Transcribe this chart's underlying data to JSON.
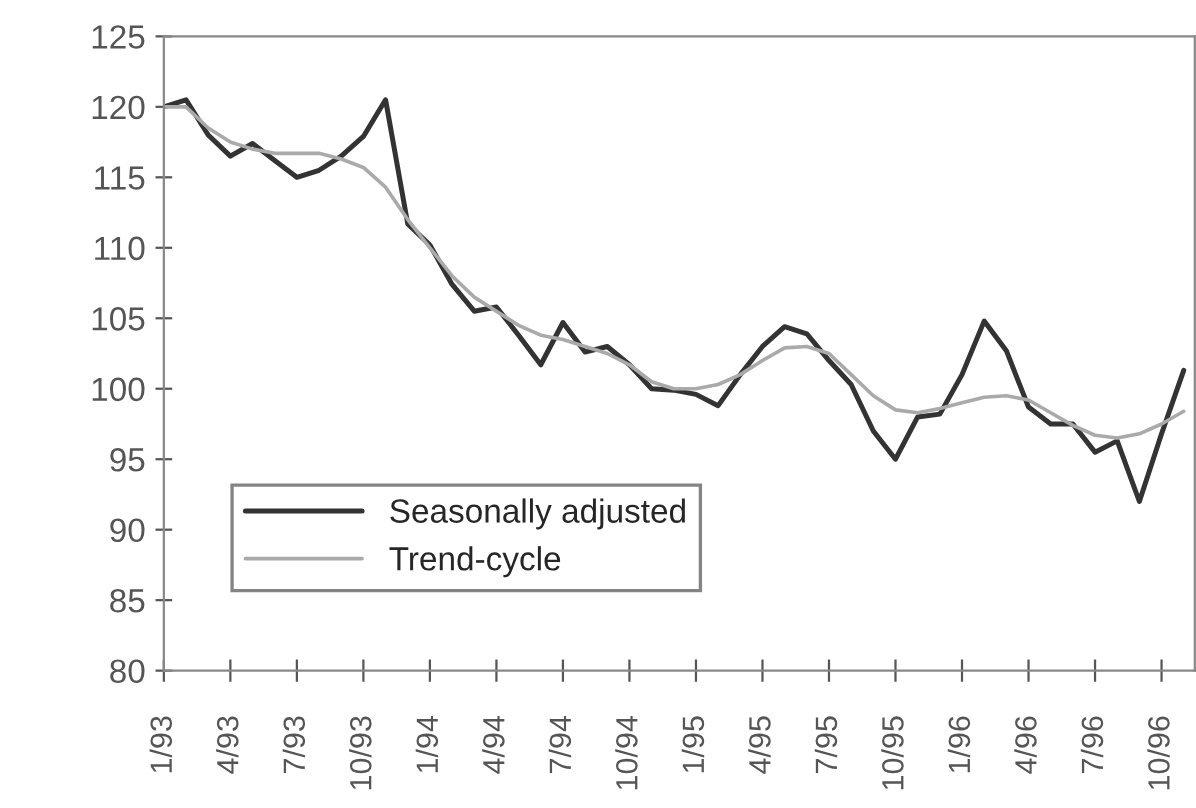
{
  "chart_data": {
    "type": "line",
    "x": [
      "1993-01",
      "1993-02",
      "1993-03",
      "1993-04",
      "1993-05",
      "1993-06",
      "1993-07",
      "1993-08",
      "1993-09",
      "1993-10",
      "1993-11",
      "1993-12",
      "1994-01",
      "1994-02",
      "1994-03",
      "1994-04",
      "1994-05",
      "1994-06",
      "1994-07",
      "1994-08",
      "1994-09",
      "1994-10",
      "1994-11",
      "1994-12",
      "1995-01",
      "1995-02",
      "1995-03",
      "1995-04",
      "1995-05",
      "1995-06",
      "1995-07",
      "1995-08",
      "1995-09",
      "1995-10",
      "1995-11",
      "1995-12",
      "1996-01",
      "1996-02",
      "1996-03",
      "1996-04",
      "1996-05",
      "1996-06",
      "1996-07",
      "1996-08",
      "1996-09",
      "1996-10",
      "1996-11"
    ],
    "series": [
      {
        "name": "Seasonally adjusted",
        "color": "#333333",
        "values": [
          120,
          120.5,
          118,
          116.5,
          117.4,
          116.2,
          115,
          115.5,
          116.5,
          117.9,
          120.5,
          111.7,
          110.2,
          107.4,
          105.5,
          105.8,
          103.8,
          101.7,
          104.7,
          102.6,
          103,
          101.7,
          100,
          99.9,
          99.6,
          98.8,
          101,
          103,
          104.4,
          103.9,
          102,
          100.3,
          97,
          95,
          98,
          98.2,
          101,
          104.8,
          102.7,
          98.7,
          97.5,
          97.5,
          95.5,
          96.3,
          92,
          96.8,
          101.3
        ]
      },
      {
        "name": "Trend-cycle",
        "color": "#aaaaaa",
        "values": [
          120,
          120,
          118.5,
          117.5,
          117,
          116.7,
          116.7,
          116.7,
          116.3,
          115.7,
          114.3,
          112,
          110,
          108,
          106.5,
          105.5,
          104.5,
          103.8,
          103.5,
          103,
          102.5,
          101.7,
          100.5,
          100,
          100,
          100.3,
          101,
          102,
          102.9,
          103,
          102.5,
          101,
          99.5,
          98.5,
          98.3,
          98.6,
          99,
          99.4,
          99.5,
          99.2,
          98.3,
          97.4,
          96.7,
          96.5,
          96.8,
          97.5,
          98.4
        ]
      }
    ],
    "xlim": [
      "1993-01-01",
      "1996-11-16"
    ],
    "xticks": [
      {
        "value": "1993-01",
        "label": "1/93"
      },
      {
        "value": "1993-04",
        "label": "4/93"
      },
      {
        "value": "1993-07",
        "label": "7/93"
      },
      {
        "value": "1993-10",
        "label": "10/93"
      },
      {
        "value": "1994-01",
        "label": "1/94"
      },
      {
        "value": "1994-04",
        "label": "4/94"
      },
      {
        "value": "1994-07",
        "label": "7/94"
      },
      {
        "value": "1994-10",
        "label": "10/94"
      },
      {
        "value": "1995-01",
        "label": "1/95"
      },
      {
        "value": "1995-04",
        "label": "4/95"
      },
      {
        "value": "1995-07",
        "label": "7/95"
      },
      {
        "value": "1995-10",
        "label": "10/95"
      },
      {
        "value": "1996-01",
        "label": "1/96"
      },
      {
        "value": "1996-04",
        "label": "4/96"
      },
      {
        "value": "1996-07",
        "label": "7/96"
      },
      {
        "value": "1996-10",
        "label": "10/96"
      }
    ],
    "ylim": [
      80,
      125
    ],
    "yticks": [
      80,
      85,
      90,
      95,
      100,
      105,
      110,
      115,
      120,
      125
    ],
    "legend": "bottom left",
    "grid": false,
    "marker": "none",
    "line_style": "solid"
  }
}
